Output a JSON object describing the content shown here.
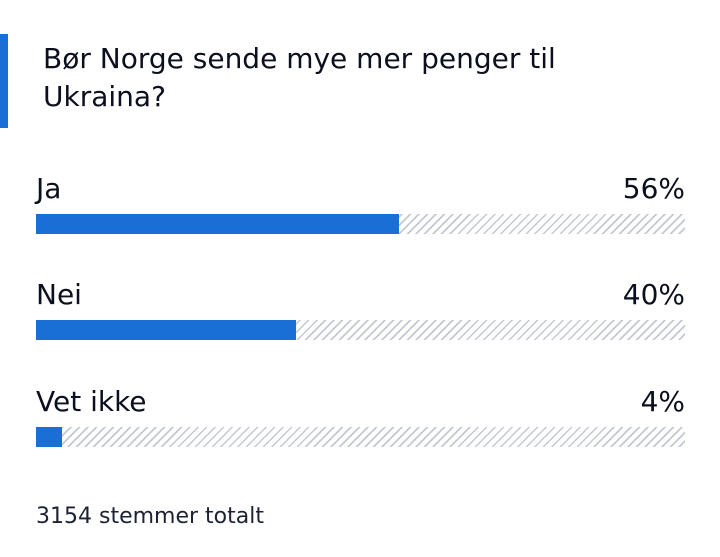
{
  "poll": {
    "question": "Bør Norge sende mye mer penger til Ukraina?",
    "accent_color": "#1a6fd6",
    "options": [
      {
        "label": "Ja",
        "percent_label": "56%",
        "fraction": 0.56
      },
      {
        "label": "Nei",
        "percent_label": "40%",
        "fraction": 0.4
      },
      {
        "label": "Vet ikke",
        "percent_label": "4%",
        "fraction": 0.04
      }
    ],
    "total_votes": "3154 stemmer totalt"
  }
}
